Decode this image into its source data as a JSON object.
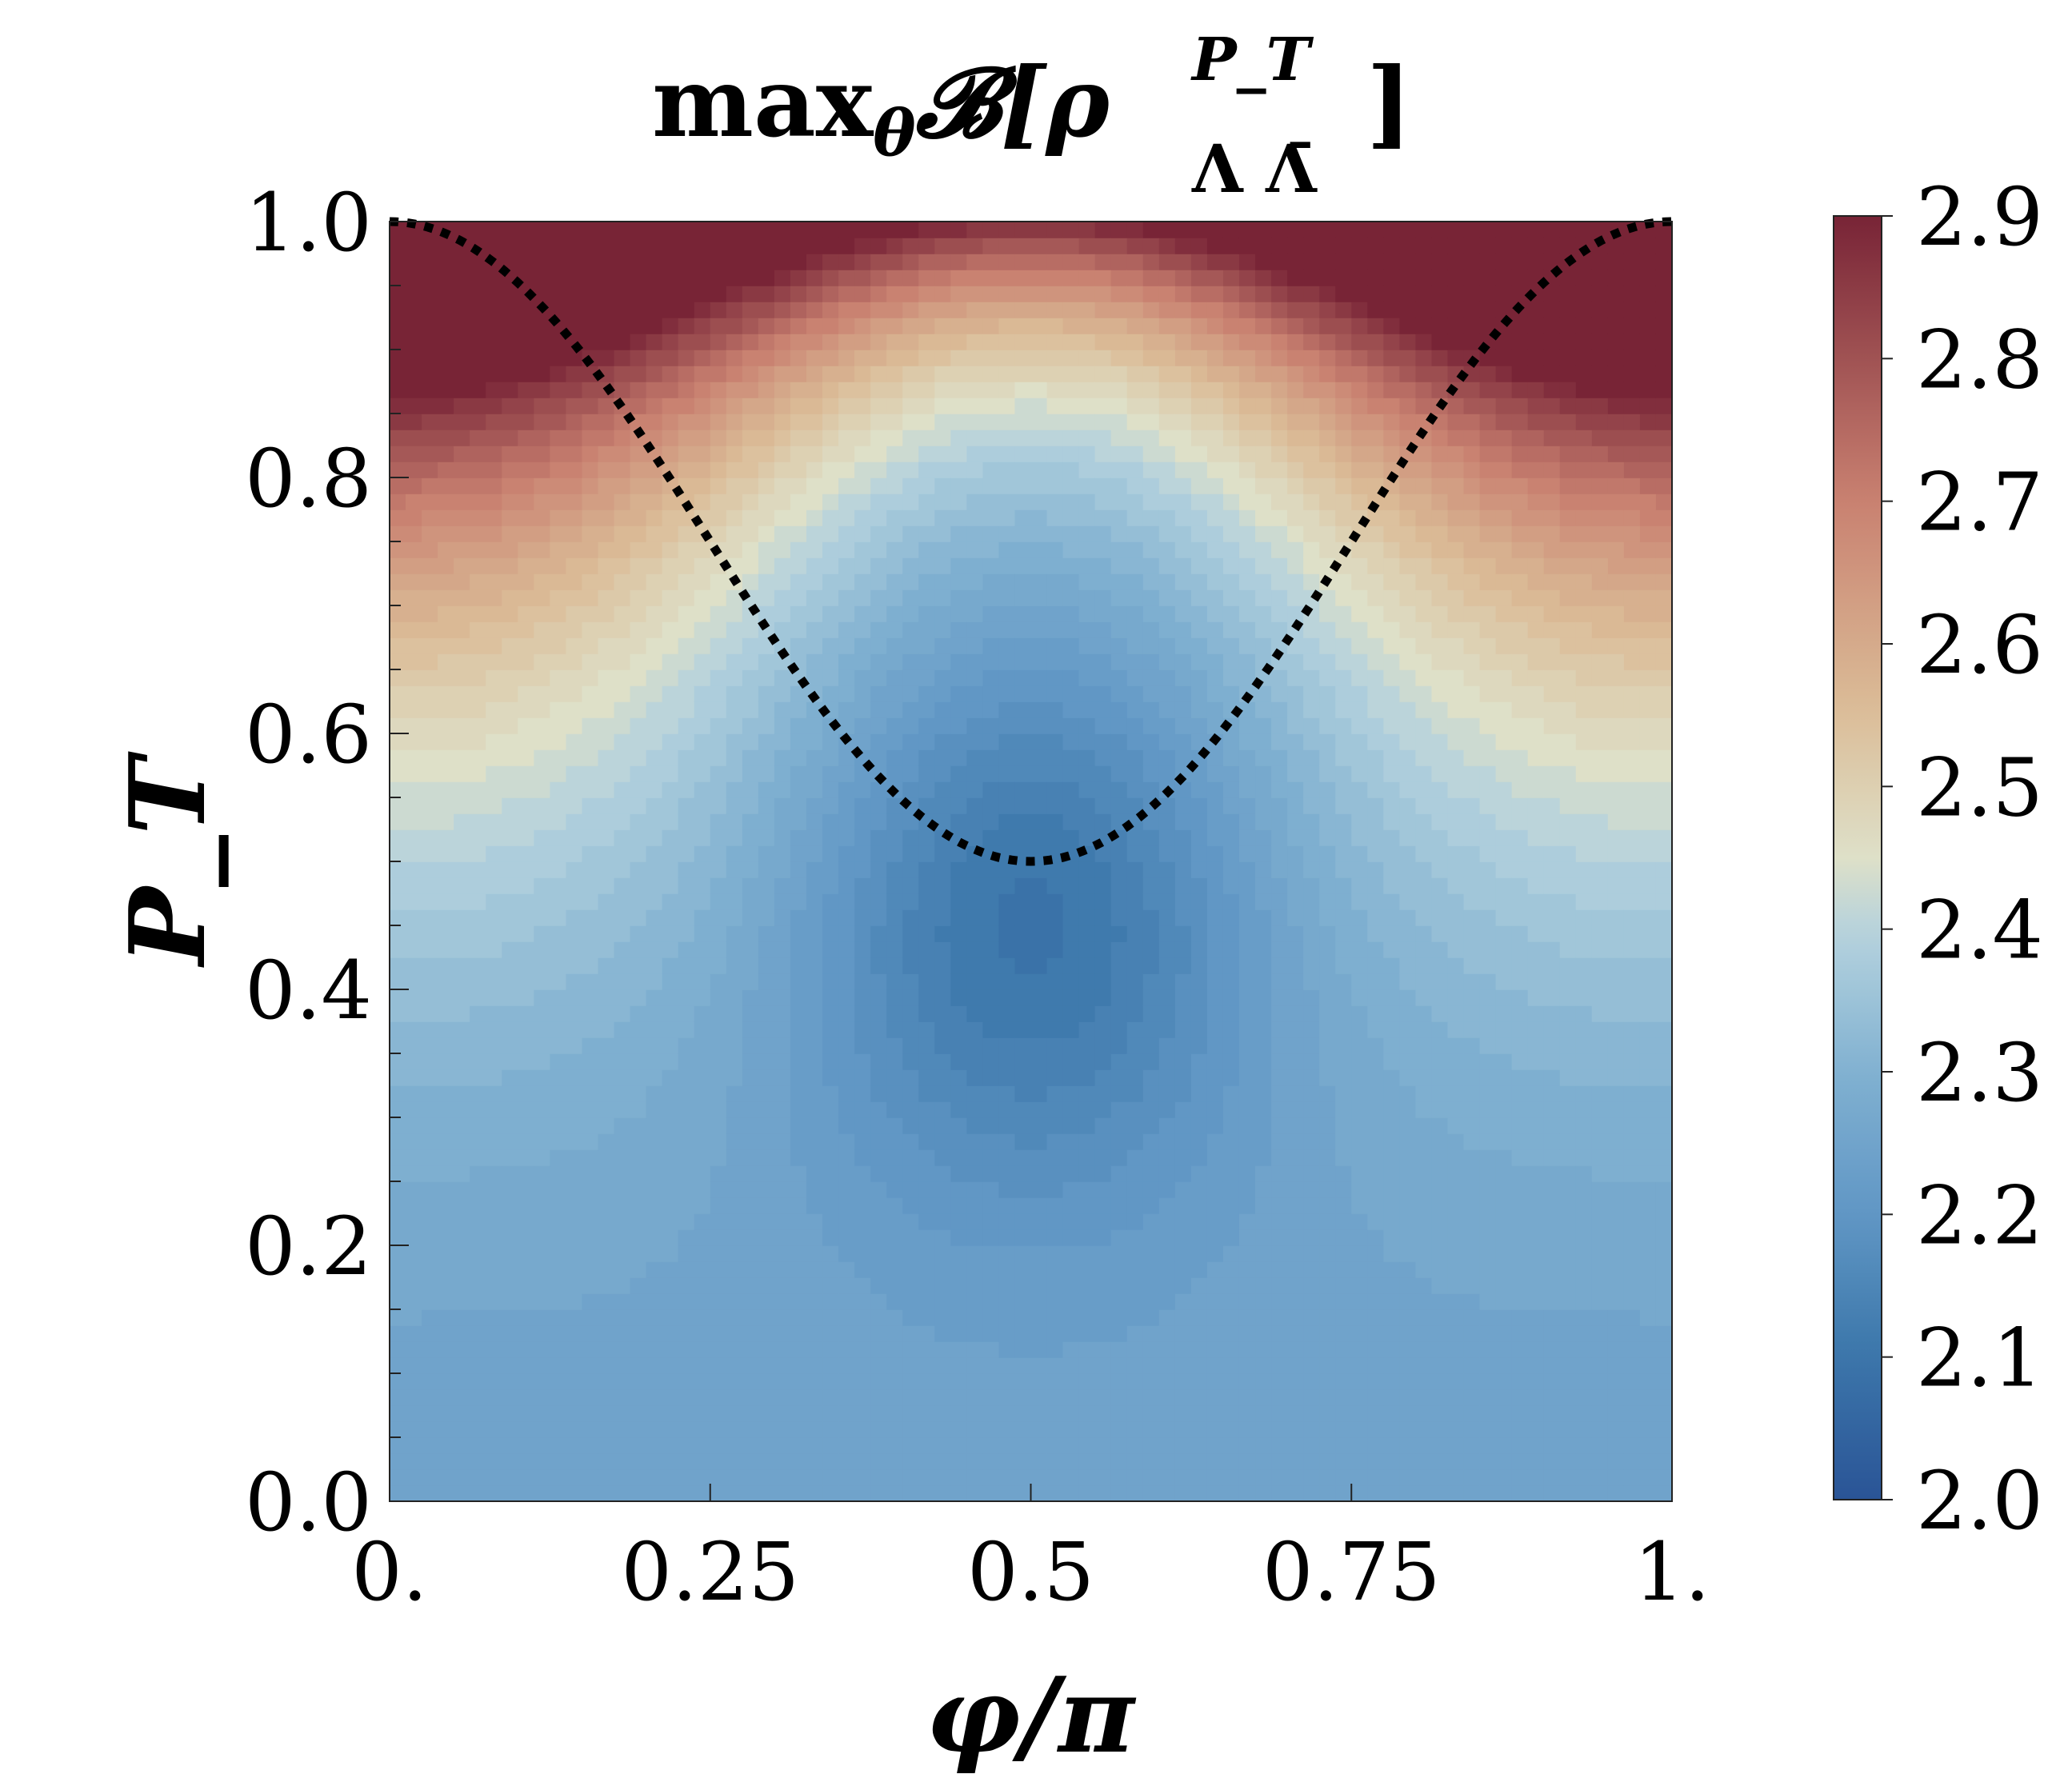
{
  "chart_data": {
    "type": "heatmap",
    "title": {
      "prefix": "max",
      "sub": "θ",
      "symbol": "𝓑[",
      "rho": "ρ",
      "sup": "P_T",
      "lower": "Λ Λ̄",
      "suffix": "]"
    },
    "xlabel": "φ/π",
    "ylabel": "P_T",
    "xlim": [
      0,
      1
    ],
    "ylim": [
      0,
      1
    ],
    "xticks": [
      {
        "value": 0,
        "label": "0."
      },
      {
        "value": 0.25,
        "label": "0.25"
      },
      {
        "value": 0.5,
        "label": "0.5"
      },
      {
        "value": 0.75,
        "label": "0.75"
      },
      {
        "value": 1,
        "label": "1."
      }
    ],
    "yticks": [
      {
        "value": 0.0,
        "label": "0.0"
      },
      {
        "value": 0.2,
        "label": "0.2"
      },
      {
        "value": 0.4,
        "label": "0.4"
      },
      {
        "value": 0.6,
        "label": "0.6"
      },
      {
        "value": 0.8,
        "label": "0.8"
      },
      {
        "value": 1.0,
        "label": "1.0"
      }
    ],
    "colorbar": {
      "min": 2.0,
      "max": 2.9,
      "colormap": "RdYlBu_r",
      "ticks": [
        {
          "value": 2.0,
          "label": "2.0"
        },
        {
          "value": 2.1,
          "label": "2.1"
        },
        {
          "value": 2.2,
          "label": "2.2"
        },
        {
          "value": 2.3,
          "label": "2.3"
        },
        {
          "value": 2.4,
          "label": "2.4"
        },
        {
          "value": 2.5,
          "label": "2.5"
        },
        {
          "value": 2.6,
          "label": "2.6"
        },
        {
          "value": 2.7,
          "label": "2.7"
        },
        {
          "value": 2.8,
          "label": "2.8"
        },
        {
          "value": 2.9,
          "label": "2.9"
        }
      ]
    },
    "grid_samples": [
      {
        "x": 0.0,
        "y": 0.0,
        "value": 2.25
      },
      {
        "x": 0.5,
        "y": 0.0,
        "value": 2.25
      },
      {
        "x": 0.0,
        "y": 0.4,
        "value": 2.33
      },
      {
        "x": 0.5,
        "y": 0.45,
        "value": 2.1
      },
      {
        "x": 0.0,
        "y": 0.7,
        "value": 2.52
      },
      {
        "x": 0.5,
        "y": 0.8,
        "value": 2.4
      },
      {
        "x": 0.0,
        "y": 1.0,
        "value": 2.89
      },
      {
        "x": 0.5,
        "y": 1.0,
        "value": 2.85
      }
    ],
    "boundary_curve": {
      "style": "dotted",
      "color": "#000000",
      "x": [
        0.0,
        0.05,
        0.1,
        0.15,
        0.2,
        0.25,
        0.3,
        0.35,
        0.4,
        0.45,
        0.5,
        0.55,
        0.6,
        0.65,
        0.7,
        0.75,
        0.8,
        0.85,
        0.9,
        0.95,
        1.0
      ],
      "y": [
        1.0,
        0.994,
        0.976,
        0.946,
        0.905,
        0.854,
        0.794,
        0.727,
        0.655,
        0.578,
        0.5,
        0.578,
        0.655,
        0.727,
        0.794,
        0.854,
        0.905,
        0.946,
        0.976,
        0.994,
        1.0
      ]
    },
    "grid": false,
    "legend": "none"
  }
}
